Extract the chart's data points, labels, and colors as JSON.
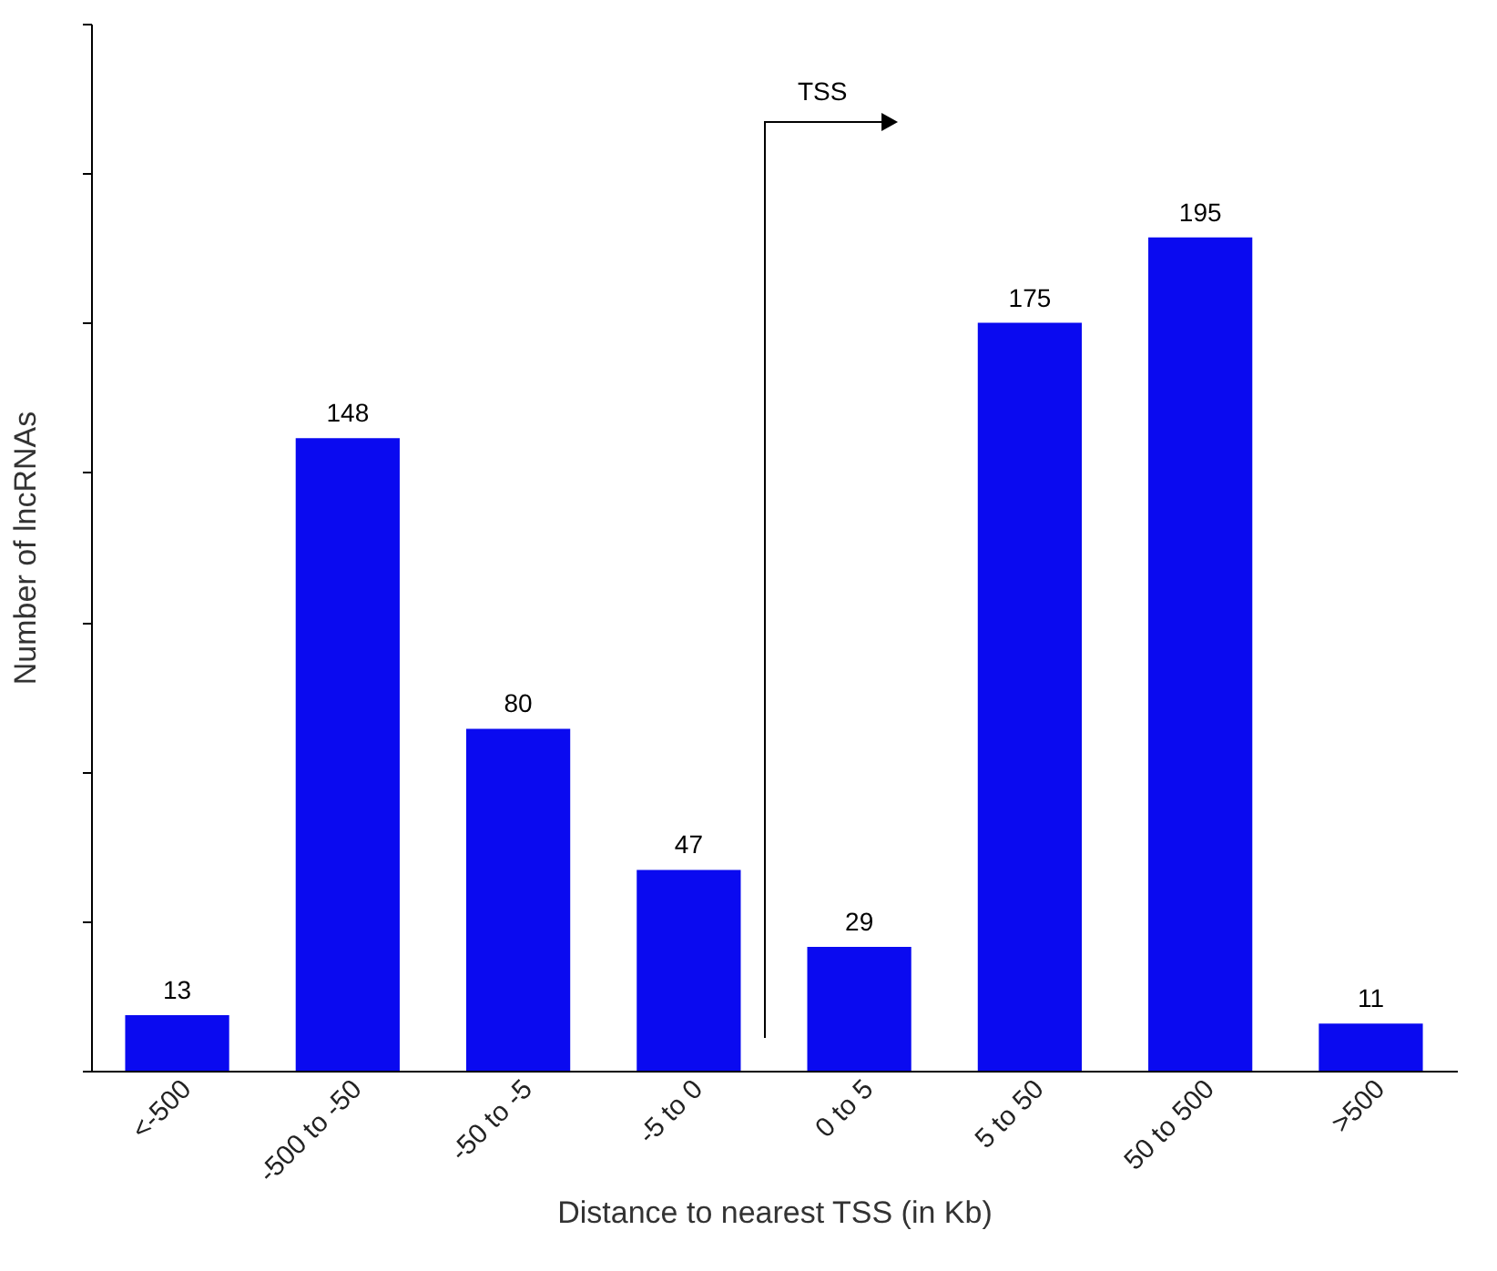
{
  "chart_data": {
    "type": "bar",
    "xlabel": "Distance to nearest TSS (in Kb)",
    "ylabel": "Number of lncRNAs",
    "categories": [
      "<-500",
      "-500 to -50",
      "-50 to -5",
      "-5 to 0",
      "0 to 5",
      "5 to 50",
      "50 to 500",
      ">500"
    ],
    "values": [
      13,
      148,
      80,
      47,
      29,
      175,
      195,
      11
    ],
    "color": "#0a0af0",
    "data_labels": true,
    "ylim": [
      0,
      245
    ],
    "yticks": [
      {
        "value": 0,
        "label": null
      },
      {
        "value": 35,
        "label": null
      },
      {
        "value": 70,
        "label": null
      },
      {
        "value": 105,
        "label": null
      },
      {
        "value": 140,
        "label": null
      },
      {
        "value": 175,
        "label": null
      },
      {
        "value": 210,
        "label": null
      },
      {
        "value": 245,
        "label": null
      }
    ],
    "annotations": [
      "TSS"
    ],
    "grid": false
  }
}
